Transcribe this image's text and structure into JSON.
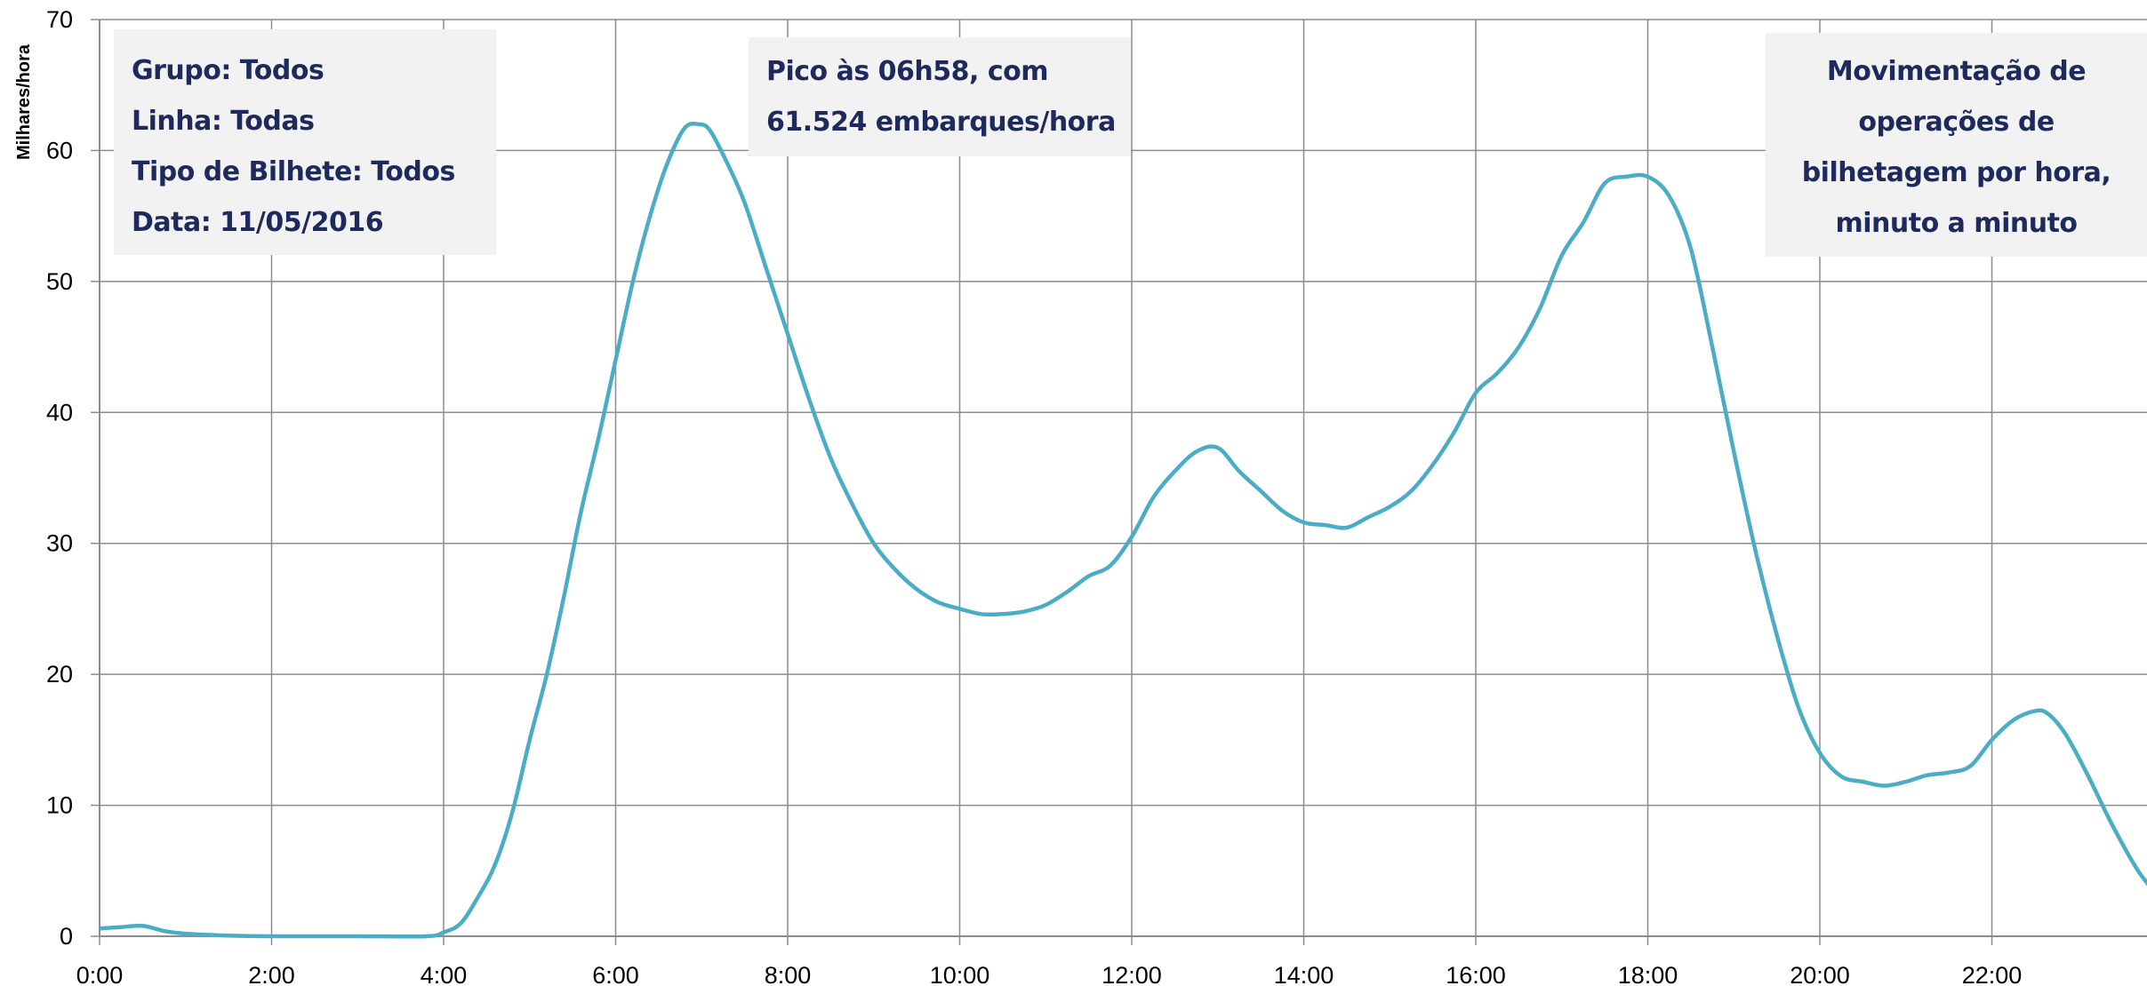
{
  "info": {
    "grupo": "Grupo: Todos",
    "linha": "Linha: Todas",
    "tipo": "Tipo de Bilhete: Todos",
    "data": "Data: 11/05/2016"
  },
  "peak": {
    "line1": "Pico às 06h58, com",
    "line2": "61.524 embarques/hora"
  },
  "title": {
    "line1": "Movimentação de",
    "line2": "operações de",
    "line3": "bilhetagem por hora,",
    "line4": "minuto a minuto"
  },
  "colors": {
    "line": "#4bacc6",
    "grid": "#8c8c8c",
    "box_bg": "#f2f2f2",
    "box_text": "#1f2a5c"
  },
  "chart_data": {
    "type": "line",
    "ylabel": "Milhares/hora",
    "xlabel": "",
    "ylim": [
      0,
      70
    ],
    "xlim_hours": [
      0,
      25
    ],
    "grid": true,
    "y_ticks": [
      0,
      10,
      20,
      30,
      40,
      50,
      60,
      70
    ],
    "x_ticks": [
      {
        "h": 0,
        "label": "0:00"
      },
      {
        "h": 2,
        "label": "2:00"
      },
      {
        "h": 4,
        "label": "4:00"
      },
      {
        "h": 6,
        "label": "6:00"
      },
      {
        "h": 8,
        "label": "8:00"
      },
      {
        "h": 10,
        "label": "10:00"
      },
      {
        "h": 12,
        "label": "12:00"
      },
      {
        "h": 14,
        "label": "14:00"
      },
      {
        "h": 16,
        "label": "16:00"
      },
      {
        "h": 18,
        "label": "18:00"
      },
      {
        "h": 20,
        "label": "20:00"
      },
      {
        "h": 22,
        "label": "22:00"
      }
    ],
    "series": [
      {
        "points": [
          [
            0.0,
            0.6
          ],
          [
            0.25,
            0.7
          ],
          [
            0.5,
            0.8
          ],
          [
            0.75,
            0.4
          ],
          [
            1.0,
            0.2
          ],
          [
            1.5,
            0.05
          ],
          [
            2.0,
            0.0
          ],
          [
            3.0,
            0.0
          ],
          [
            3.8,
            0.0
          ],
          [
            4.0,
            0.3
          ],
          [
            4.2,
            1.0
          ],
          [
            4.4,
            3.0
          ],
          [
            4.6,
            5.5
          ],
          [
            4.8,
            9.5
          ],
          [
            5.0,
            15.0
          ],
          [
            5.2,
            20.0
          ],
          [
            5.4,
            26.0
          ],
          [
            5.6,
            32.5
          ],
          [
            5.8,
            38.0
          ],
          [
            6.0,
            44.0
          ],
          [
            6.2,
            50.0
          ],
          [
            6.4,
            55.0
          ],
          [
            6.6,
            59.0
          ],
          [
            6.8,
            61.7
          ],
          [
            6.97,
            62.0
          ],
          [
            7.1,
            61.5
          ],
          [
            7.3,
            59.0
          ],
          [
            7.5,
            56.0
          ],
          [
            7.75,
            51.0
          ],
          [
            8.0,
            46.0
          ],
          [
            8.25,
            41.0
          ],
          [
            8.5,
            36.5
          ],
          [
            8.75,
            33.0
          ],
          [
            9.0,
            30.0
          ],
          [
            9.25,
            28.0
          ],
          [
            9.5,
            26.5
          ],
          [
            9.75,
            25.5
          ],
          [
            10.0,
            25.0
          ],
          [
            10.25,
            24.6
          ],
          [
            10.5,
            24.6
          ],
          [
            10.75,
            24.8
          ],
          [
            11.0,
            25.3
          ],
          [
            11.25,
            26.3
          ],
          [
            11.5,
            27.5
          ],
          [
            11.75,
            28.3
          ],
          [
            12.0,
            30.5
          ],
          [
            12.25,
            33.5
          ],
          [
            12.5,
            35.5
          ],
          [
            12.75,
            37.0
          ],
          [
            13.0,
            37.3
          ],
          [
            13.25,
            35.5
          ],
          [
            13.5,
            34.0
          ],
          [
            13.75,
            32.5
          ],
          [
            14.0,
            31.6
          ],
          [
            14.25,
            31.4
          ],
          [
            14.5,
            31.2
          ],
          [
            14.75,
            32.0
          ],
          [
            15.0,
            32.8
          ],
          [
            15.25,
            34.0
          ],
          [
            15.5,
            36.0
          ],
          [
            15.75,
            38.5
          ],
          [
            16.0,
            41.5
          ],
          [
            16.25,
            43.0
          ],
          [
            16.5,
            45.0
          ],
          [
            16.75,
            48.0
          ],
          [
            17.0,
            52.0
          ],
          [
            17.25,
            54.5
          ],
          [
            17.5,
            57.5
          ],
          [
            17.75,
            58.0
          ],
          [
            18.0,
            58.0
          ],
          [
            18.25,
            56.5
          ],
          [
            18.5,
            52.5
          ],
          [
            18.75,
            45.0
          ],
          [
            19.0,
            37.0
          ],
          [
            19.25,
            29.5
          ],
          [
            19.5,
            23.0
          ],
          [
            19.75,
            17.5
          ],
          [
            20.0,
            14.0
          ],
          [
            20.25,
            12.2
          ],
          [
            20.5,
            11.8
          ],
          [
            20.75,
            11.5
          ],
          [
            21.0,
            11.8
          ],
          [
            21.25,
            12.3
          ],
          [
            21.5,
            12.5
          ],
          [
            21.75,
            13.0
          ],
          [
            22.0,
            15.0
          ],
          [
            22.25,
            16.5
          ],
          [
            22.5,
            17.2
          ],
          [
            22.65,
            17.0
          ],
          [
            22.85,
            15.5
          ],
          [
            23.1,
            12.5
          ],
          [
            23.4,
            8.5
          ],
          [
            23.7,
            5.0
          ],
          [
            24.0,
            2.5
          ]
        ]
      }
    ]
  }
}
